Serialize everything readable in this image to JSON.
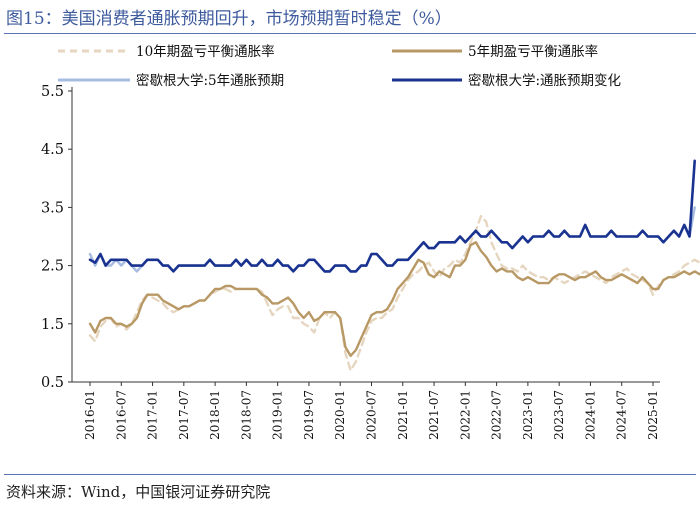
{
  "title": "图15：美国消费者通胀预期回升，市场预期暂时稳定（%）",
  "source": "资料来源：Wind，中国银河证券研究院",
  "chart_data": {
    "type": "line",
    "title": "图15：美国消费者通胀预期回升，市场预期暂时稳定（%）",
    "xlabel": "",
    "ylabel": "",
    "ylim": [
      0.5,
      5.5
    ],
    "yticks": [
      "0.5",
      "1.5",
      "2.5",
      "3.5",
      "4.5",
      "5.5"
    ],
    "x_start": "2016-01",
    "x_ticks": [
      "2016-01",
      "2016-07",
      "2017-01",
      "2017-07",
      "2018-01",
      "2018-07",
      "2019-01",
      "2019-07",
      "2020-01",
      "2020-07",
      "2021-01",
      "2021-07",
      "2022-01",
      "2022-07",
      "2023-01",
      "2023-07",
      "2024-01",
      "2024-07",
      "2025-01"
    ],
    "series": [
      {
        "name": "10年期盈亏平衡通胀率",
        "color": "#e6d6c0",
        "dash": true,
        "values": [
          1.3,
          1.2,
          1.45,
          1.55,
          1.6,
          1.45,
          1.5,
          1.4,
          1.5,
          1.7,
          1.9,
          2.0,
          1.95,
          1.9,
          1.85,
          1.75,
          1.7,
          1.75,
          1.8,
          1.8,
          1.85,
          1.9,
          1.9,
          2.0,
          2.05,
          2.1,
          2.1,
          2.05,
          2.1,
          2.1,
          2.1,
          2.1,
          2.1,
          2.05,
          1.85,
          1.65,
          1.75,
          1.8,
          1.8,
          1.6,
          1.6,
          1.5,
          1.45,
          1.35,
          1.6,
          1.7,
          1.6,
          1.7,
          1.6,
          1.0,
          0.7,
          0.85,
          1.1,
          1.35,
          1.55,
          1.6,
          1.6,
          1.7,
          1.75,
          1.95,
          2.1,
          2.25,
          2.35,
          2.4,
          2.5,
          2.55,
          2.4,
          2.3,
          2.45,
          2.5,
          2.6,
          2.55,
          2.7,
          2.9,
          3.1,
          3.35,
          3.25,
          2.9,
          2.7,
          2.5,
          2.45,
          2.45,
          2.4,
          2.5,
          2.4,
          2.35,
          2.3,
          2.3,
          2.25,
          2.3,
          2.25,
          2.2,
          2.25,
          2.3,
          2.35,
          2.4,
          2.35,
          2.3,
          2.25,
          2.2,
          2.3,
          2.35,
          2.4,
          2.45,
          2.35,
          2.3,
          2.25,
          2.2,
          2.0,
          2.15,
          2.25,
          2.3,
          2.35,
          2.4,
          2.5,
          2.55,
          2.6,
          2.55
        ]
      },
      {
        "name": "5年期盈亏平衡通胀率",
        "color": "#b89864",
        "dash": false,
        "values": [
          1.5,
          1.35,
          1.55,
          1.6,
          1.6,
          1.5,
          1.5,
          1.45,
          1.5,
          1.6,
          1.85,
          2.0,
          2.0,
          2.0,
          1.9,
          1.85,
          1.8,
          1.75,
          1.8,
          1.8,
          1.85,
          1.9,
          1.9,
          2.0,
          2.1,
          2.1,
          2.15,
          2.15,
          2.1,
          2.1,
          2.1,
          2.1,
          2.1,
          2.0,
          1.95,
          1.85,
          1.85,
          1.9,
          1.95,
          1.85,
          1.7,
          1.6,
          1.7,
          1.55,
          1.6,
          1.7,
          1.7,
          1.7,
          1.6,
          1.1,
          0.95,
          1.05,
          1.25,
          1.45,
          1.65,
          1.7,
          1.7,
          1.75,
          1.9,
          2.1,
          2.2,
          2.3,
          2.45,
          2.6,
          2.55,
          2.35,
          2.3,
          2.4,
          2.35,
          2.3,
          2.5,
          2.5,
          2.6,
          2.85,
          2.9,
          2.75,
          2.65,
          2.5,
          2.4,
          2.45,
          2.4,
          2.4,
          2.3,
          2.25,
          2.3,
          2.25,
          2.2,
          2.2,
          2.2,
          2.3,
          2.35,
          2.35,
          2.3,
          2.25,
          2.3,
          2.3,
          2.35,
          2.4,
          2.3,
          2.25,
          2.25,
          2.3,
          2.35,
          2.3,
          2.25,
          2.2,
          2.3,
          2.2,
          2.1,
          2.1,
          2.25,
          2.3,
          2.3,
          2.35,
          2.4,
          2.35,
          2.4,
          2.35
        ]
      },
      {
        "name": "密歇根大学:5年通胀预期",
        "color": "#a7bce0",
        "dash": false,
        "values": [
          2.7,
          2.5,
          2.7,
          2.5,
          2.5,
          2.6,
          2.5,
          2.6,
          2.5,
          2.4,
          2.5,
          2.6,
          2.6,
          2.6,
          2.5,
          2.5,
          2.4,
          2.5,
          2.5,
          2.5,
          2.5,
          2.5,
          2.5,
          2.6,
          2.5,
          2.5,
          2.5,
          2.5,
          2.6,
          2.5,
          2.6,
          2.5,
          2.5,
          2.6,
          2.5,
          2.5,
          2.6,
          2.5,
          2.5,
          2.4,
          2.5,
          2.5,
          2.6,
          2.6,
          2.5,
          2.4,
          2.4,
          2.5,
          2.5,
          2.5,
          2.4,
          2.4,
          2.5,
          2.5,
          2.7,
          2.7,
          2.6,
          2.5,
          2.5,
          2.6,
          2.6,
          2.6,
          2.7,
          2.8,
          2.9,
          2.8,
          2.8,
          2.9,
          2.9,
          2.9,
          2.9,
          3.0,
          2.9,
          3.0,
          3.1,
          3.0,
          3.0,
          3.1,
          3.0,
          2.9,
          2.9,
          2.8,
          2.9,
          3.0,
          2.9,
          3.0,
          3.0,
          3.0,
          3.1,
          3.0,
          3.0,
          3.1,
          3.0,
          3.0,
          3.0,
          3.2,
          3.0,
          3.0,
          3.0,
          3.0,
          3.1,
          3.0,
          3.0,
          3.0,
          3.0,
          3.0,
          3.1,
          3.0,
          3.0,
          3.0,
          2.9,
          3.0,
          3.1,
          3.0,
          3.2,
          3.0,
          3.5
        ]
      },
      {
        "name": "密歇根大学:通胀预期变化",
        "color": "#1a3390",
        "dash": false,
        "values": [
          2.6,
          2.55,
          2.7,
          2.5,
          2.6,
          2.6,
          2.6,
          2.6,
          2.5,
          2.5,
          2.5,
          2.6,
          2.6,
          2.6,
          2.5,
          2.5,
          2.4,
          2.5,
          2.5,
          2.5,
          2.5,
          2.5,
          2.5,
          2.6,
          2.5,
          2.5,
          2.5,
          2.5,
          2.6,
          2.5,
          2.6,
          2.5,
          2.5,
          2.6,
          2.5,
          2.5,
          2.6,
          2.5,
          2.5,
          2.4,
          2.5,
          2.5,
          2.6,
          2.6,
          2.5,
          2.4,
          2.4,
          2.5,
          2.5,
          2.5,
          2.4,
          2.4,
          2.5,
          2.5,
          2.7,
          2.7,
          2.6,
          2.5,
          2.5,
          2.6,
          2.6,
          2.6,
          2.7,
          2.8,
          2.9,
          2.8,
          2.8,
          2.9,
          2.9,
          2.9,
          2.9,
          3.0,
          2.9,
          3.0,
          3.1,
          3.0,
          3.0,
          3.1,
          3.0,
          2.9,
          2.9,
          2.8,
          2.9,
          3.0,
          2.9,
          3.0,
          3.0,
          3.0,
          3.1,
          3.0,
          3.0,
          3.1,
          3.0,
          3.0,
          3.0,
          3.2,
          3.0,
          3.0,
          3.0,
          3.0,
          3.1,
          3.0,
          3.0,
          3.0,
          3.0,
          3.0,
          3.1,
          3.0,
          3.0,
          3.0,
          2.9,
          3.0,
          3.1,
          3.0,
          3.2,
          3.0,
          4.3
        ]
      }
    ]
  }
}
